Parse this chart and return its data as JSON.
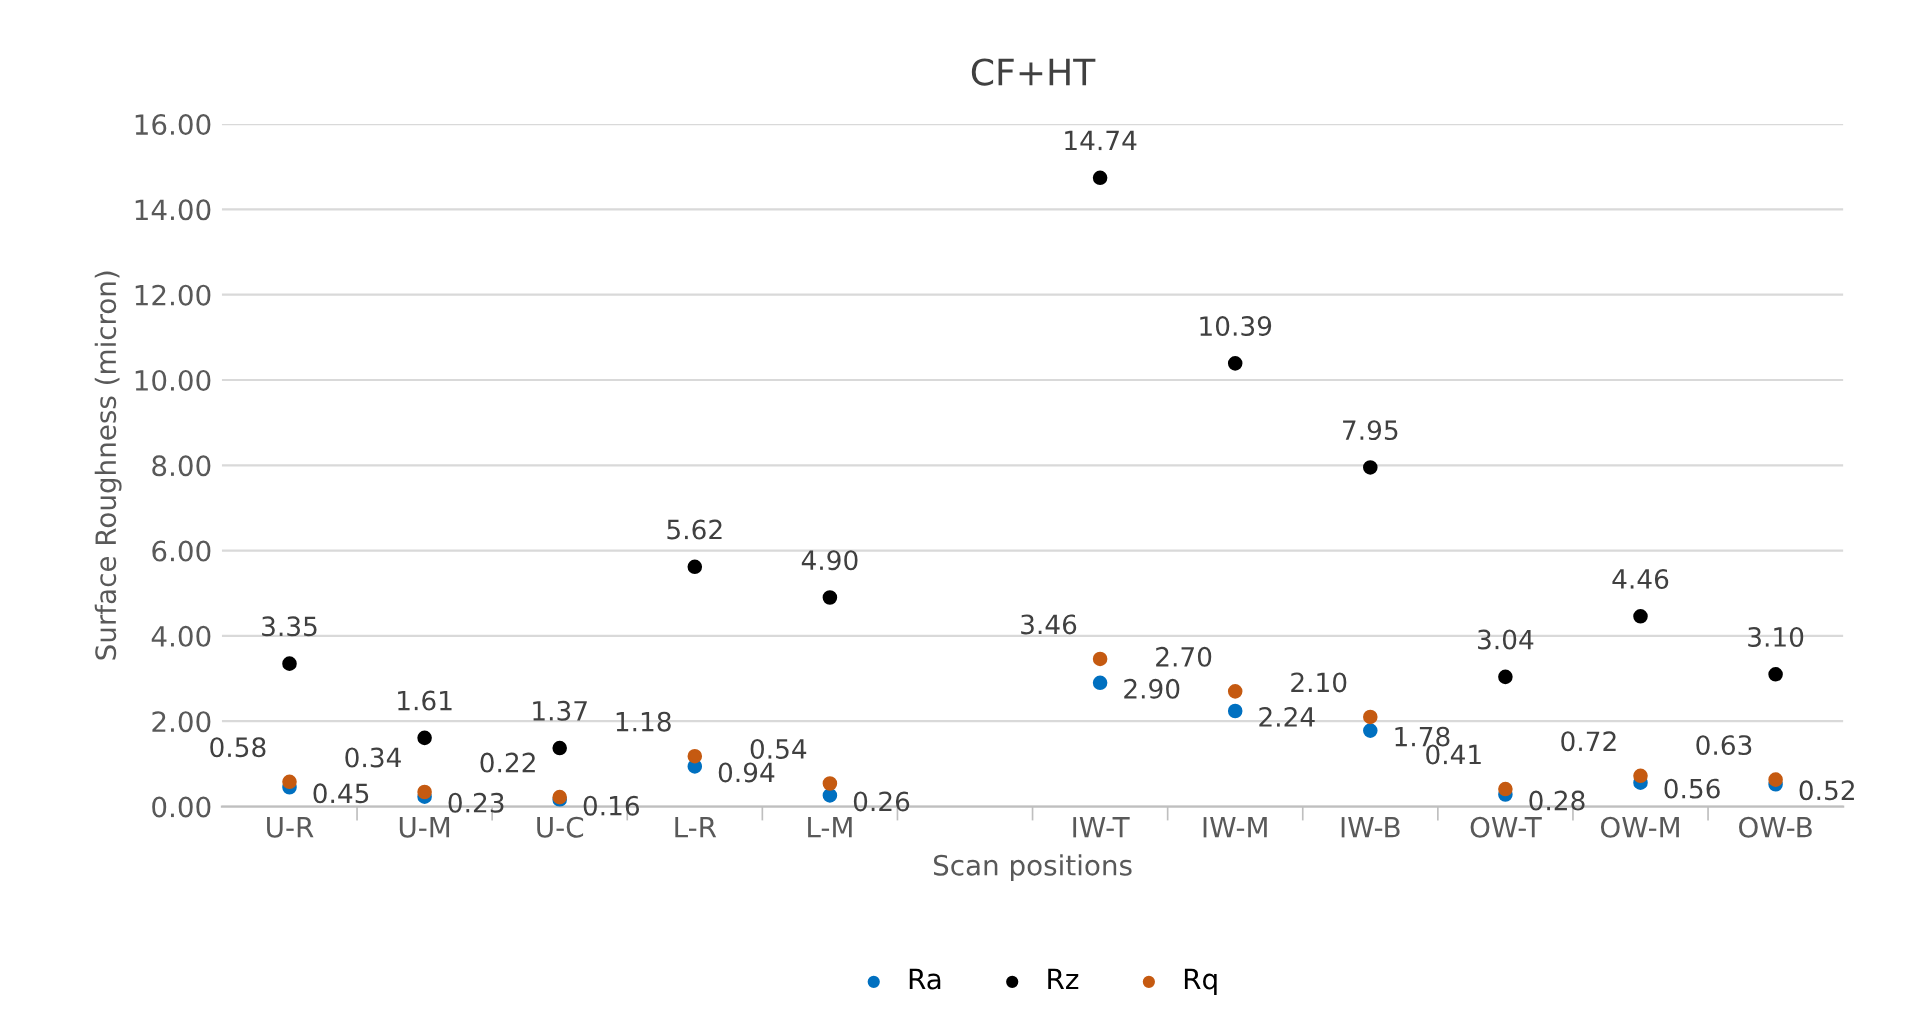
{
  "chart_data": {
    "type": "scatter",
    "title": "CF+HT",
    "xlabel": "Scan positions",
    "ylabel": "Surface Roughness (micron)",
    "categories": [
      "U-R",
      "U-M",
      "U-C",
      "L-R",
      "L-M",
      null,
      "IW-T",
      "IW-M",
      "IW-B",
      "OW-T",
      "OW-M",
      "OW-B"
    ],
    "series": [
      {
        "name": "Ra",
        "color": "#0070c0",
        "values": [
          0.45,
          0.23,
          0.16,
          0.94,
          0.26,
          null,
          2.9,
          2.24,
          1.78,
          0.28,
          0.56,
          0.52
        ],
        "value_labels": [
          "0.45",
          "0.23",
          "0.16",
          "0.94",
          "0.26",
          null,
          "2.90",
          "2.24",
          "1.78",
          "0.28",
          "0.56",
          "0.52"
        ]
      },
      {
        "name": "Rz",
        "color": "#000000",
        "values": [
          3.35,
          1.61,
          1.37,
          5.62,
          4.9,
          null,
          14.74,
          10.39,
          7.95,
          3.04,
          4.46,
          3.1
        ],
        "value_labels": [
          "3.35",
          "1.61",
          "1.37",
          "5.62",
          "4.90",
          null,
          "14.74",
          "10.39",
          "7.95",
          "3.04",
          "4.46",
          "3.10"
        ]
      },
      {
        "name": "Rq",
        "color": "#c55a11",
        "values": [
          0.58,
          0.34,
          0.22,
          1.18,
          0.54,
          null,
          3.46,
          2.7,
          2.1,
          0.41,
          0.72,
          0.63
        ],
        "value_labels": [
          "0.58",
          "0.34",
          "0.22",
          "1.18",
          "0.54",
          null,
          "3.46",
          "2.70",
          "2.10",
          "0.41",
          "0.72",
          "0.63"
        ]
      }
    ],
    "ylim": [
      0,
      16
    ],
    "yticks": [
      {
        "value": 0,
        "label": "0.00"
      },
      {
        "value": 2,
        "label": "2.00"
      },
      {
        "value": 4,
        "label": "4.00"
      },
      {
        "value": 6,
        "label": "6.00"
      },
      {
        "value": 8,
        "label": "8.00"
      },
      {
        "value": 10,
        "label": "10.00"
      },
      {
        "value": 12,
        "label": "12.00"
      },
      {
        "value": 14,
        "label": "14.00"
      },
      {
        "value": 16,
        "label": "16.00"
      }
    ],
    "grid": "y",
    "legend": "bottom",
    "marker": "circle"
  }
}
